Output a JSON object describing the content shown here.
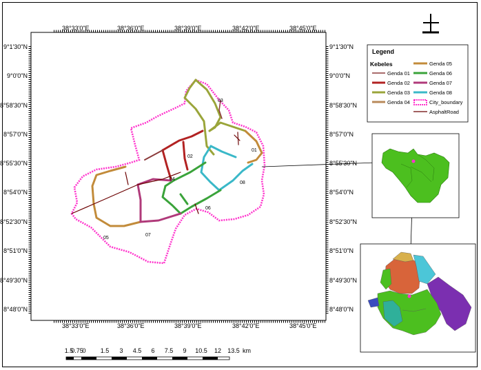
{
  "map": {
    "top_labels": [
      "38°33'0\"E",
      "38°36'0\"E",
      "38°39'0\"E",
      "38°42'0\"E",
      "38°45'0\"E"
    ],
    "bottom_labels": [
      "38°33'0\"E",
      "38°36'0\"E",
      "38°39'0\"E",
      "38°42'0\"E",
      "38°45'0\"E"
    ],
    "left_labels": [
      "9°1'30\"N",
      "9°0'0\"N",
      "8°58'30\"N",
      "8°57'0\"N",
      "8°55'30\"N",
      "8°54'0\"N",
      "8°52'30\"N",
      "8°51'0\"N",
      "8°49'30\"N",
      "8°48'0\"N"
    ],
    "right_labels": [
      "9°1'30\"N",
      "9°0'0\"N",
      "8°58'30\"N",
      "8°57'0\"N",
      "8°55'30\"N",
      "8°54'0\"N",
      "8°52'30\"N",
      "8°51'0\"N",
      "8°49'30\"N",
      "8°48'0\"N"
    ],
    "kebele_codes": [
      "01",
      "02",
      "03",
      "04",
      "05",
      "06",
      "07",
      "08"
    ]
  },
  "legend": {
    "title": "Legend",
    "subtitle": "Kebeles",
    "items": [
      {
        "label": "Genda 01",
        "color": "#8b3a3a"
      },
      {
        "label": "Genda 02",
        "color": "#b22222"
      },
      {
        "label": "Genda 03",
        "color": "#9aa53a"
      },
      {
        "label": "Genda 04",
        "color": "#b8895a"
      },
      {
        "label": "Genda 05",
        "color": "#c28b3a"
      },
      {
        "label": "Genda 06",
        "color": "#3aa33a"
      },
      {
        "label": "Genda 07",
        "color": "#b03a7a"
      },
      {
        "label": "Genda 08",
        "color": "#3ab8c8"
      },
      {
        "label": "City_boundary",
        "color": "#ff33cc"
      },
      {
        "label": "AsphaltRoad",
        "color": "#6b0000"
      }
    ]
  },
  "scale": {
    "ticks": [
      "1.5",
      "0.75",
      "0",
      "1.5",
      "3",
      "4.5",
      "6",
      "7.5",
      "9",
      "10.5",
      "12",
      "13.5"
    ],
    "unit": "km"
  },
  "colors": {
    "city_boundary": "#ff33cc",
    "inset_green": "#4cbf1f",
    "ethiopia_purple": "#7b2fb0",
    "ethiopia_teal": "#2fb09a",
    "ethiopia_cyan": "#4cc6d8",
    "ethiopia_orange": "#d8643a",
    "ethiopia_tan": "#d8b04c",
    "ethiopia_blue": "#3a4cc0"
  },
  "icons": {
    "north_arrow": "north-arrow-icon"
  }
}
